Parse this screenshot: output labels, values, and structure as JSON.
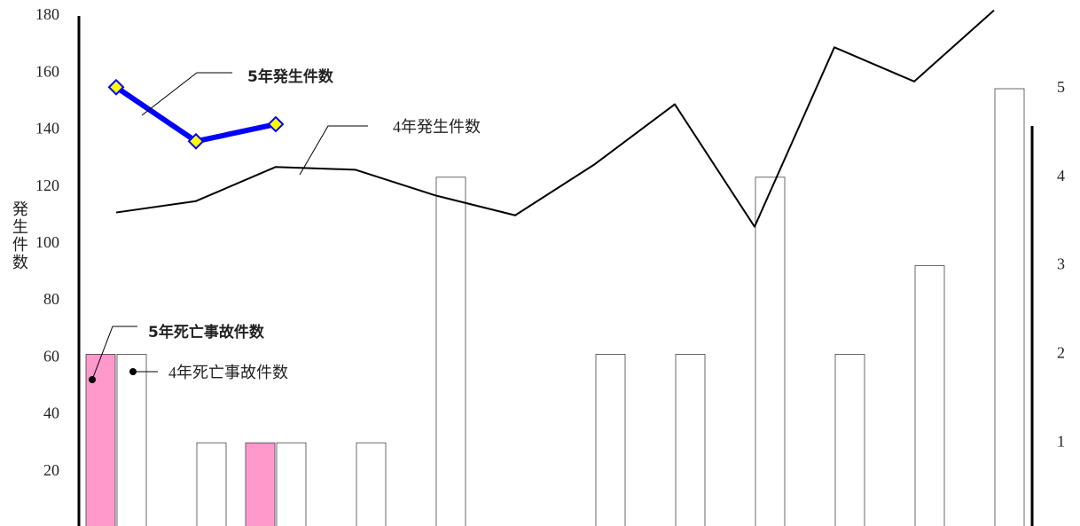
{
  "chart_data": {
    "type": "combo",
    "categories": [
      null,
      null,
      null,
      null,
      null,
      null,
      null,
      null,
      null,
      null,
      null,
      null
    ],
    "ylabel": "発生件数",
    "ylim": [
      0,
      180
    ],
    "yticks": [
      20,
      40,
      60,
      80,
      100,
      120,
      140,
      160,
      180
    ],
    "y2lim": [
      0,
      5
    ],
    "y2ticks": [
      1,
      2,
      3,
      4,
      5
    ],
    "series": [
      {
        "name": "5年発生件数",
        "type": "line",
        "color": "#0000ff",
        "marker_color": "#ffff00",
        "values": [
          155,
          136,
          142,
          null,
          null,
          null,
          null,
          null,
          null,
          null,
          null,
          null
        ]
      },
      {
        "name": "4年発生件数",
        "type": "line",
        "color": "#000000",
        "values": [
          111,
          115,
          127,
          126,
          117,
          110,
          128,
          149,
          106,
          169,
          157,
          182
        ]
      },
      {
        "name": "5年死亡事故件数",
        "type": "bar",
        "axis": "y2",
        "color": "#ff99cc",
        "values": [
          2,
          0,
          1,
          null,
          null,
          null,
          null,
          null,
          null,
          null,
          null,
          null
        ]
      },
      {
        "name": "4年死亡事故件数",
        "type": "bar",
        "axis": "y2",
        "color": "#ffffff",
        "values": [
          2,
          1,
          1,
          1,
          4,
          0,
          2,
          2,
          4,
          2,
          3,
          5
        ]
      }
    ]
  }
}
